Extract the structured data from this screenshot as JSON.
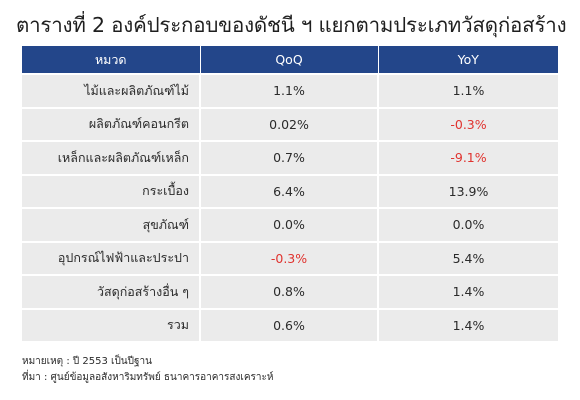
{
  "title": "ตารางที่ 2 องค์ประกอบของดัชนี ฯ แยกตามประเภทวัสดุก่อสร้าง",
  "table": {
    "headers": [
      "หมวด",
      "QoQ",
      "YoY"
    ],
    "rows": [
      {
        "category": "ไม้และผลิตภัณฑ์ไม้",
        "qoq": "1.1%",
        "yoy": "1.1%"
      },
      {
        "category": "ผลิตภัณฑ์คอนกรีต",
        "qoq": "0.02%",
        "yoy": "-0.3%"
      },
      {
        "category": "เหล็กและผลิตภัณฑ์เหล็ก",
        "qoq": "0.7%",
        "yoy": "-9.1%"
      },
      {
        "category": "กระเบื้อง",
        "qoq": "6.4%",
        "yoy": "13.9%"
      },
      {
        "category": "สุขภัณฑ์",
        "qoq": "0.0%",
        "yoy": "0.0%"
      },
      {
        "category": "อุปกรณ์ไฟฟ้าและประปา",
        "qoq": "-0.3%",
        "yoy": "5.4%"
      },
      {
        "category": "วัสดุก่อสร้างอื่น ๆ",
        "qoq": "0.8%",
        "yoy": "1.4%"
      },
      {
        "category": "รวม",
        "qoq": "0.6%",
        "yoy": "1.4%"
      }
    ]
  },
  "notes": {
    "remark": "หมายเหตุ : ปี 2553 เป็นปีฐาน",
    "source": "ที่มา : ศูนย์ข้อมูลอสังหาริมทรัพย์ ธนาคารอาคารสงเคราะห์"
  },
  "colors": {
    "header_bg": "#23468a",
    "row_bg": "#ebebeb",
    "negative": "#e0332f"
  }
}
